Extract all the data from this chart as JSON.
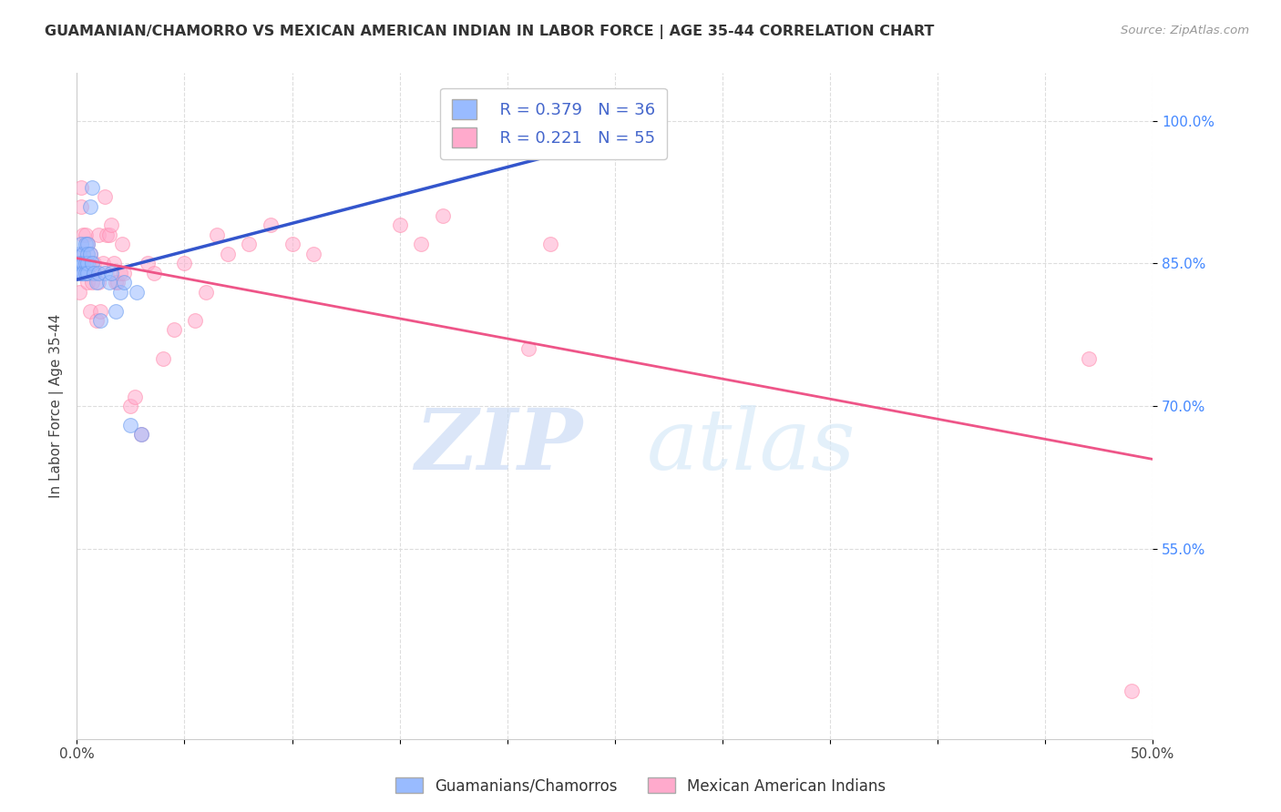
{
  "title": "GUAMANIAN/CHAMORRO VS MEXICAN AMERICAN INDIAN IN LABOR FORCE | AGE 35-44 CORRELATION CHART",
  "source": "Source: ZipAtlas.com",
  "ylabel": "In Labor Force | Age 35-44",
  "xlim": [
    0.0,
    0.5
  ],
  "ylim": [
    0.35,
    1.05
  ],
  "xticks": [
    0.0,
    0.05,
    0.1,
    0.15,
    0.2,
    0.25,
    0.3,
    0.35,
    0.4,
    0.45,
    0.5
  ],
  "xticklabels": [
    "0.0%",
    "",
    "",
    "",
    "",
    "",
    "",
    "",
    "",
    "",
    "50.0%"
  ],
  "yticks": [
    0.55,
    0.7,
    0.85,
    1.0
  ],
  "yticklabels": [
    "55.0%",
    "70.0%",
    "85.0%",
    "100.0%"
  ],
  "blue_R": 0.379,
  "blue_N": 36,
  "pink_R": 0.221,
  "pink_N": 55,
  "blue_color": "#99BBFF",
  "pink_color": "#FFAACC",
  "blue_edge_color": "#6699EE",
  "pink_edge_color": "#FF88AA",
  "blue_line_color": "#3355CC",
  "pink_line_color": "#EE5588",
  "watermark_zip": "ZIP",
  "watermark_atlas": "atlas",
  "legend_label_blue": "Guamanians/Chamorros",
  "legend_label_pink": "Mexican American Indians",
  "blue_scatter_x": [
    0.001,
    0.001,
    0.001,
    0.002,
    0.002,
    0.002,
    0.003,
    0.003,
    0.003,
    0.004,
    0.004,
    0.004,
    0.005,
    0.005,
    0.005,
    0.005,
    0.006,
    0.006,
    0.007,
    0.007,
    0.008,
    0.009,
    0.01,
    0.011,
    0.013,
    0.015,
    0.016,
    0.018,
    0.02,
    0.022,
    0.025,
    0.028,
    0.03,
    0.22,
    0.235,
    0.25
  ],
  "blue_scatter_y": [
    0.84,
    0.86,
    0.85,
    0.85,
    0.87,
    0.84,
    0.86,
    0.85,
    0.84,
    0.87,
    0.85,
    0.84,
    0.87,
    0.86,
    0.85,
    0.84,
    0.86,
    0.91,
    0.93,
    0.85,
    0.84,
    0.83,
    0.84,
    0.79,
    0.84,
    0.83,
    0.84,
    0.8,
    0.82,
    0.83,
    0.68,
    0.82,
    0.67,
    0.97,
    0.99,
    1.0
  ],
  "pink_scatter_x": [
    0.001,
    0.001,
    0.002,
    0.002,
    0.003,
    0.003,
    0.004,
    0.004,
    0.005,
    0.005,
    0.005,
    0.006,
    0.006,
    0.007,
    0.007,
    0.008,
    0.008,
    0.009,
    0.01,
    0.01,
    0.011,
    0.012,
    0.013,
    0.014,
    0.015,
    0.016,
    0.017,
    0.018,
    0.019,
    0.02,
    0.021,
    0.022,
    0.025,
    0.027,
    0.03,
    0.033,
    0.036,
    0.04,
    0.045,
    0.05,
    0.055,
    0.06,
    0.065,
    0.07,
    0.08,
    0.09,
    0.1,
    0.11,
    0.15,
    0.16,
    0.17,
    0.21,
    0.22,
    0.47,
    0.49
  ],
  "pink_scatter_y": [
    0.84,
    0.82,
    0.91,
    0.93,
    0.86,
    0.88,
    0.85,
    0.88,
    0.84,
    0.83,
    0.87,
    0.8,
    0.86,
    0.84,
    0.83,
    0.85,
    0.84,
    0.79,
    0.88,
    0.83,
    0.8,
    0.85,
    0.92,
    0.88,
    0.88,
    0.89,
    0.85,
    0.83,
    0.83,
    0.84,
    0.87,
    0.84,
    0.7,
    0.71,
    0.67,
    0.85,
    0.84,
    0.75,
    0.78,
    0.85,
    0.79,
    0.82,
    0.88,
    0.86,
    0.87,
    0.89,
    0.87,
    0.86,
    0.89,
    0.87,
    0.9,
    0.76,
    0.87,
    0.75,
    0.4
  ]
}
